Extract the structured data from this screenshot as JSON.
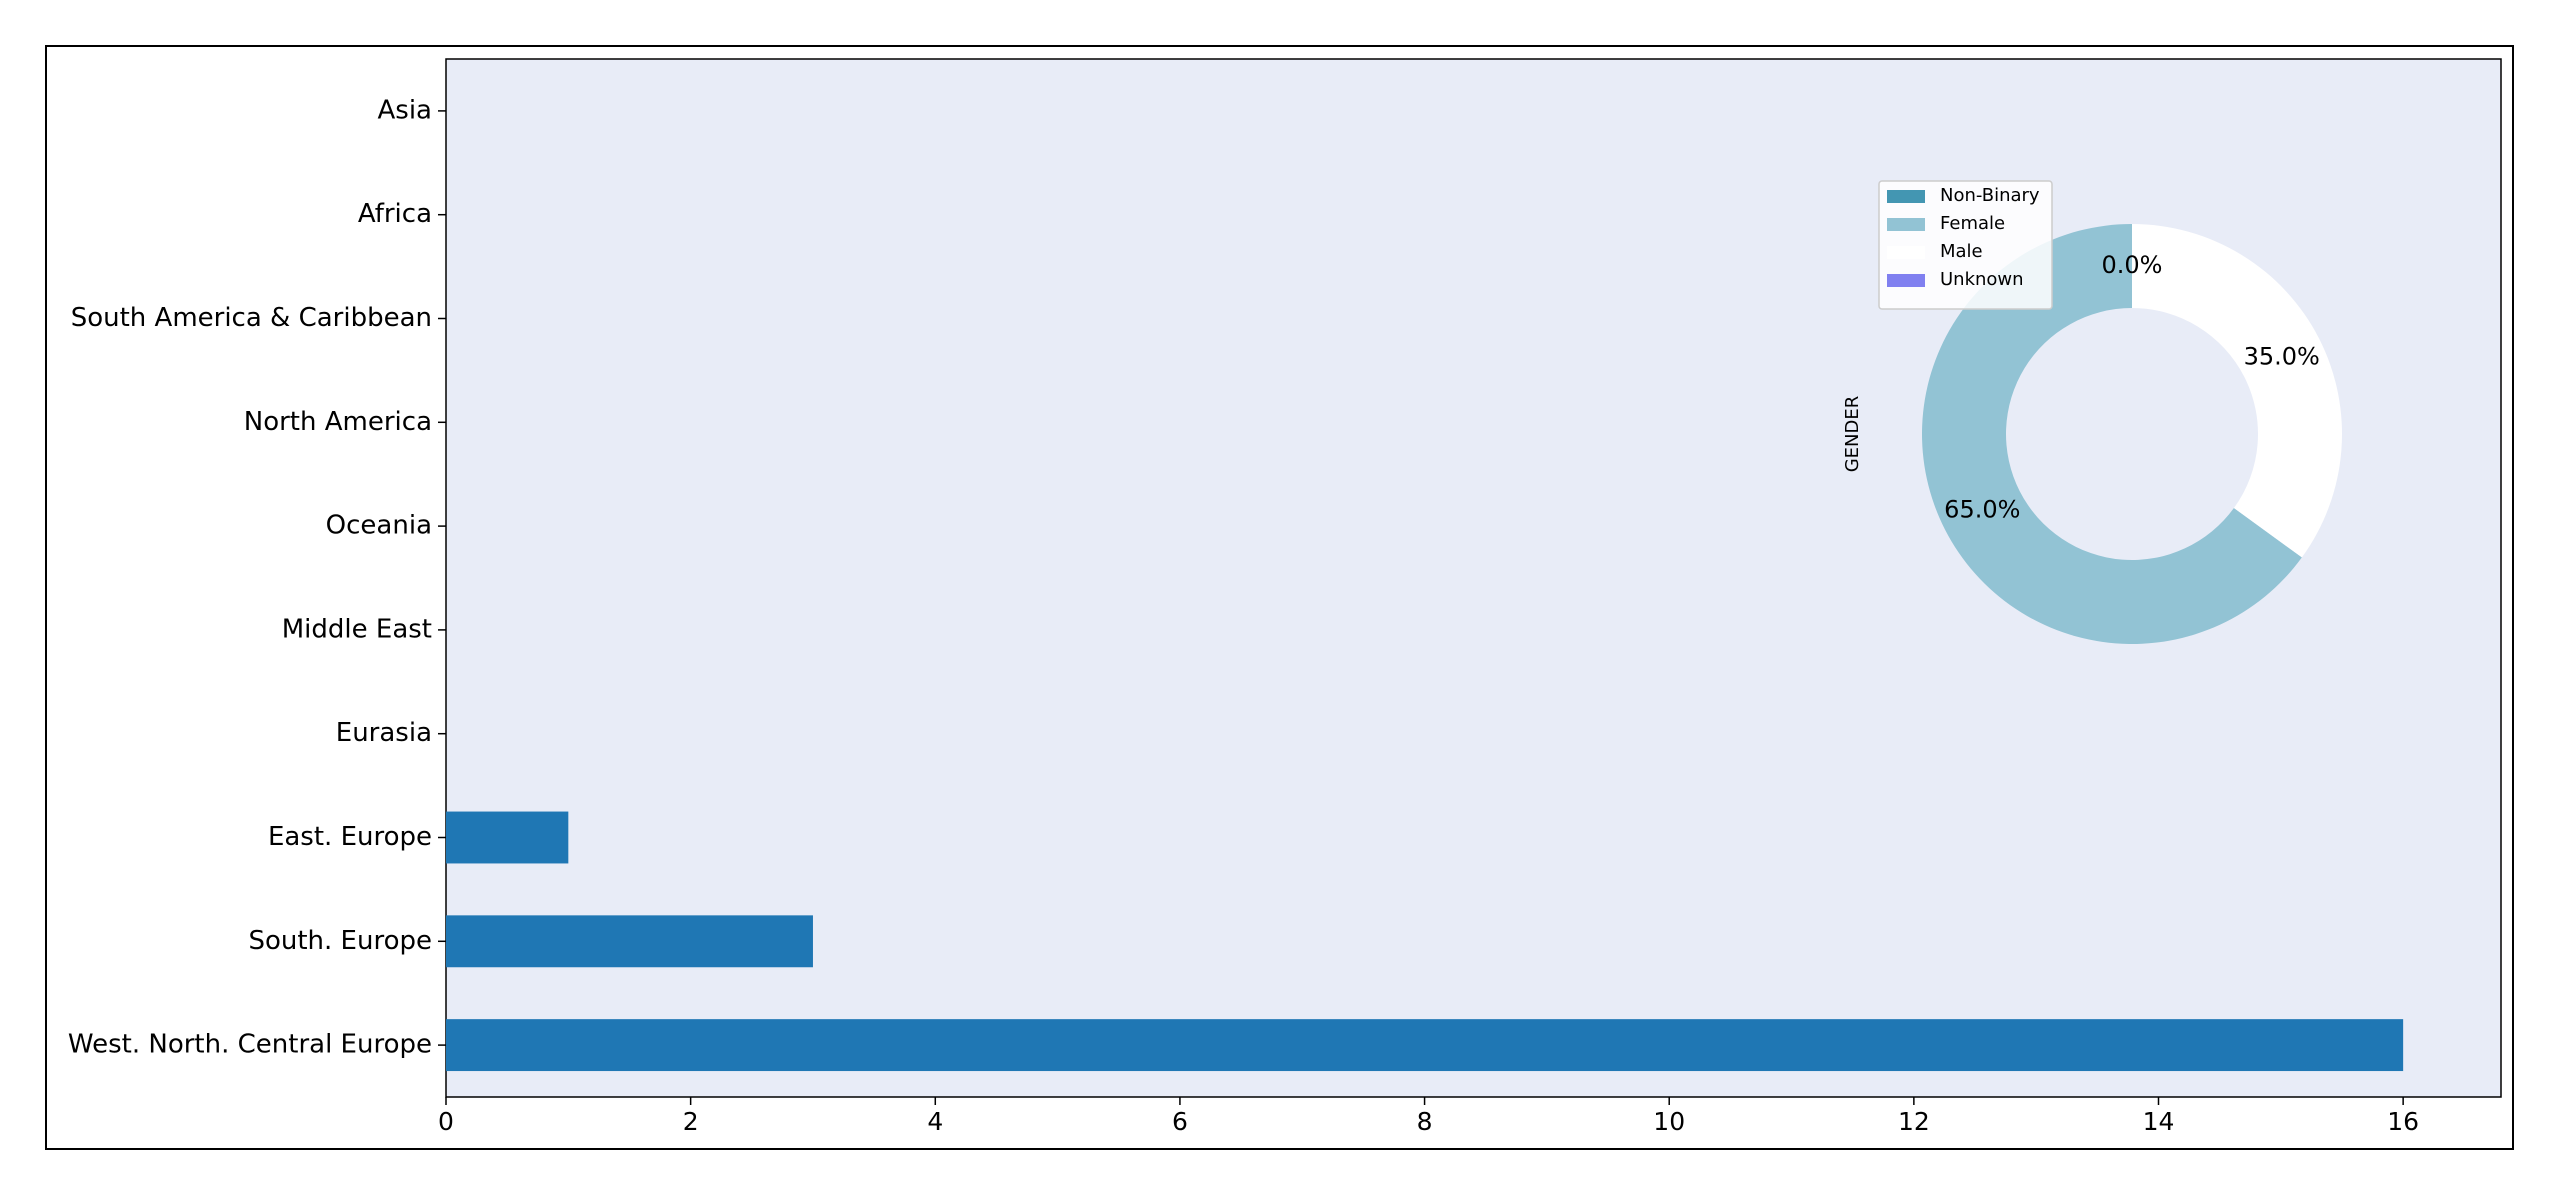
{
  "chart_data": [
    {
      "type": "barh",
      "categories": [
        "Asia",
        "Africa",
        "South America & Caribbean",
        "North America",
        "Oceania",
        "Middle East",
        "Eurasia",
        "East. Europe",
        "South. Europe",
        "West. North. Central Europe"
      ],
      "values": [
        0,
        0,
        0,
        0,
        0,
        0,
        0,
        1,
        3,
        16
      ],
      "color": "#1f77b4",
      "xlim": [
        0,
        16.8
      ],
      "xticks": [
        0,
        2,
        4,
        6,
        8,
        10,
        12,
        14,
        16
      ]
    },
    {
      "type": "pie",
      "ylabel": "GENDER",
      "labels": [
        "Non-Binary",
        "Female",
        "Male",
        "Unknown"
      ],
      "values": [
        0,
        65,
        35,
        0
      ],
      "value_labels": [
        "0.0%",
        "65.0%",
        "35.0%",
        "0.0%"
      ],
      "colors": [
        "#4396b2",
        "#92c3d4",
        "#ffffff",
        "#8080f0"
      ]
    }
  ]
}
